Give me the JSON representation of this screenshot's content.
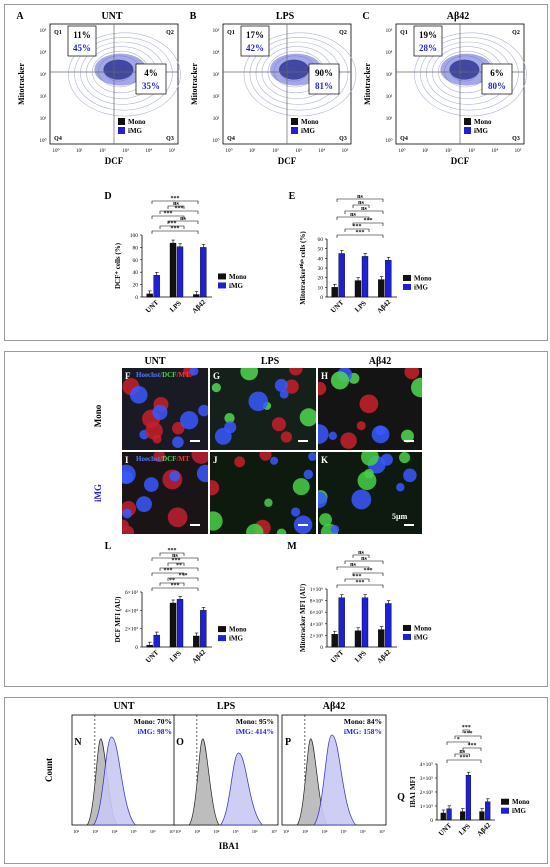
{
  "figure": {
    "panel_labels": [
      "A",
      "B",
      "C",
      "D",
      "E",
      "F",
      "G",
      "H",
      "I",
      "J",
      "K",
      "L",
      "M",
      "N",
      "O",
      "P",
      "Q"
    ],
    "conditions": [
      "UNT",
      "LPS",
      "Aβ42"
    ],
    "legend_mono": "Mono",
    "legend_img": "iMG",
    "colors": {
      "mono": "#111111",
      "img": "#1f1fd6",
      "contour_img": "#3d3dd8",
      "frame": "#9a9a9a"
    }
  },
  "flow": {
    "xlabel": "DCF",
    "ylabel": "Mitotracker",
    "quadrants": [
      "Q1",
      "Q2",
      "Q3",
      "Q4"
    ],
    "x_ticks": [
      "10⁰",
      "10¹",
      "10²",
      "10³",
      "10⁴",
      "10⁵"
    ],
    "y_ticks": [
      "10⁰",
      "10¹",
      "10²",
      "10³",
      "10⁴",
      "10⁵"
    ],
    "plots": [
      {
        "title": "UNT",
        "q1_mono": "11%",
        "q1_img": "45%",
        "q2_mono": "4%",
        "q2_img": "35%"
      },
      {
        "title": "LPS",
        "q1_mono": "17%",
        "q1_img": "42%",
        "q2_mono": "90%",
        "q2_img": "81%"
      },
      {
        "title": "Aβ42",
        "q1_mono": "19%",
        "q1_img": "28%",
        "q2_mono": "6%",
        "q2_img": "80%"
      }
    ]
  },
  "bar_d": {
    "ylabel": "DCF⁺ cells (%)",
    "yticks": [
      "0",
      "20",
      "40",
      "60",
      "80",
      "100"
    ],
    "stars": [
      "***",
      "***",
      "ns",
      "***",
      "***",
      "ns",
      "***"
    ]
  },
  "bar_e": {
    "ylabel": "Mitotrackerᴴⁱᵍʰ cells (%)",
    "yticks": [
      "0",
      "10",
      "20",
      "30",
      "40",
      "50",
      "60"
    ],
    "stars": [
      "***",
      "***",
      "***",
      "ns",
      "ns",
      "ns",
      "ns"
    ]
  },
  "micro": {
    "stain_hoechst": "Hoechst/",
    "stain_dcf": "DCF",
    "stain_mt": "/MT",
    "row_mono": "Mono",
    "row_img": "iMG",
    "scale": "5µm"
  },
  "bar_l": {
    "ylabel": "DCF MFI (AU)",
    "yticks": [
      "0",
      "2×10³",
      "4×10³",
      "6×10³"
    ],
    "stars": [
      "***",
      "**",
      "***",
      "***",
      "**",
      "***",
      "ns",
      "***"
    ]
  },
  "bar_m": {
    "ylabel": "Mitotracker MFI (AU)",
    "yticks": [
      "0",
      "2×10⁵",
      "4×10⁵",
      "6×10⁵",
      "8×10⁵",
      "1×10⁶"
    ],
    "stars": [
      "***",
      "***",
      "***",
      "ns",
      "ns",
      "ns"
    ]
  },
  "hist": {
    "ylabel": "Count",
    "xlabel": "IBA1",
    "x_ticks": [
      "10²",
      "10³",
      "10⁴",
      "10⁵",
      "10⁶",
      "10⁷"
    ],
    "plots": [
      {
        "title": "UNT",
        "mono": "Mono: 70%",
        "img": "iMG: 98%"
      },
      {
        "title": "LPS",
        "mono": "Mono: 95%",
        "img": "iMG: 414%"
      },
      {
        "title": "Aβ42",
        "mono": "Mono: 84%",
        "img": "iMG: 158%"
      }
    ]
  },
  "bar_q": {
    "ylabel": "IBA1 MFI",
    "yticks": [
      "0",
      "1×10⁵",
      "2×10⁵",
      "3×10⁵",
      "4×10⁵"
    ],
    "stars": [
      "***",
      "ns",
      "***",
      "*",
      "***",
      "***"
    ]
  },
  "chart_data": [
    {
      "type": "bar",
      "id": "D",
      "categories": [
        "UNT",
        "LPS",
        "Aβ42"
      ],
      "series": [
        {
          "name": "Mono",
          "values": [
            5,
            87,
            4
          ]
        },
        {
          "name": "iMG",
          "values": [
            35,
            81,
            80
          ]
        }
      ],
      "ylabel": "DCF⁺ cells (%)",
      "ylim": [
        0,
        100
      ]
    },
    {
      "type": "bar",
      "id": "E",
      "categories": [
        "UNT",
        "LPS",
        "Aβ42"
      ],
      "series": [
        {
          "name": "Mono",
          "values": [
            10,
            17,
            18
          ]
        },
        {
          "name": "iMG",
          "values": [
            45,
            42,
            38
          ]
        }
      ],
      "ylabel": "Mitotrackerᴴⁱᵍʰ cells (%)",
      "ylim": [
        0,
        60
      ]
    },
    {
      "type": "bar",
      "id": "L",
      "categories": [
        "UNT",
        "LPS",
        "Aβ42"
      ],
      "series": [
        {
          "name": "Mono",
          "values": [
            200,
            4800,
            1200
          ]
        },
        {
          "name": "iMG",
          "values": [
            1300,
            5200,
            4000
          ]
        }
      ],
      "ylabel": "DCF MFI (AU)",
      "ylim": [
        0,
        6000
      ]
    },
    {
      "type": "bar",
      "id": "M",
      "categories": [
        "UNT",
        "LPS",
        "Aβ42"
      ],
      "series": [
        {
          "name": "Mono",
          "values": [
            220000,
            280000,
            300000
          ]
        },
        {
          "name": "iMG",
          "values": [
            850000,
            850000,
            750000
          ]
        }
      ],
      "ylabel": "Mitotracker MFI (AU)",
      "ylim": [
        0,
        1000000
      ]
    },
    {
      "type": "bar",
      "id": "Q",
      "categories": [
        "UNT",
        "LPS",
        "Aβ42"
      ],
      "series": [
        {
          "name": "Mono",
          "values": [
            50000,
            60000,
            60000
          ]
        },
        {
          "name": "iMG",
          "values": [
            80000,
            320000,
            130000
          ]
        }
      ],
      "ylabel": "IBA1 MFI",
      "ylim": [
        0,
        400000
      ]
    }
  ]
}
